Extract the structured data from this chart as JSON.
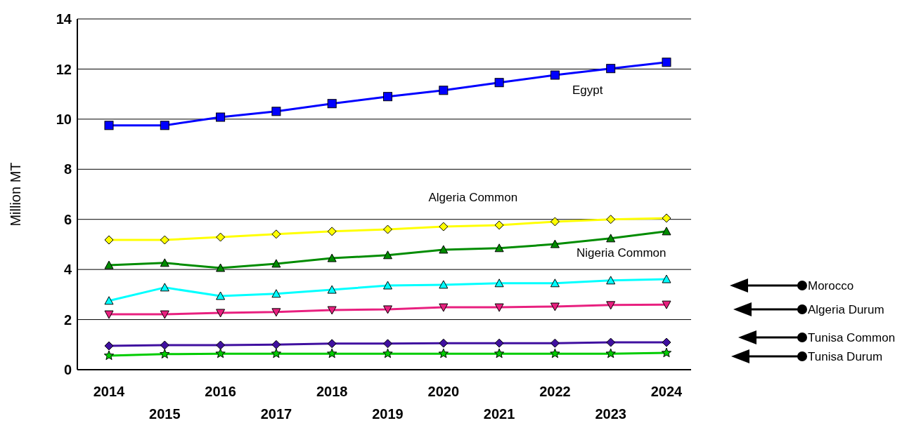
{
  "chart_data": {
    "type": "line",
    "ylabel": "Million MT",
    "categories": [
      "2014",
      "2015",
      "2016",
      "2017",
      "2018",
      "2019",
      "2020",
      "2021",
      "2022",
      "2023",
      "2024"
    ],
    "series": [
      {
        "name": "Egypt",
        "color": "#0000ff",
        "marker": "square",
        "values": [
          9.75,
          9.75,
          10.08,
          10.31,
          10.62,
          10.9,
          11.15,
          11.46,
          11.76,
          12.02,
          12.27
        ]
      },
      {
        "name": "Algeria Common",
        "color": "#ffff00",
        "marker": "diamond",
        "values": [
          5.18,
          5.18,
          5.29,
          5.41,
          5.52,
          5.6,
          5.71,
          5.77,
          5.91,
          6.0,
          6.05
        ]
      },
      {
        "name": "Nigeria Common",
        "color": "#008c00",
        "marker": "triangle",
        "values": [
          4.17,
          4.26,
          4.06,
          4.23,
          4.45,
          4.57,
          4.79,
          4.85,
          5.01,
          5.24,
          5.52
        ]
      },
      {
        "name": "Morocco",
        "color": "#00ffff",
        "marker": "triangle",
        "values": [
          2.75,
          3.28,
          2.94,
          3.03,
          3.19,
          3.36,
          3.39,
          3.45,
          3.45,
          3.56,
          3.61
        ]
      },
      {
        "name": "Algeria Durum",
        "color": "#e8207f",
        "marker": "triangle-down",
        "values": [
          2.21,
          2.21,
          2.27,
          2.3,
          2.38,
          2.41,
          2.49,
          2.49,
          2.52,
          2.58,
          2.6
        ]
      },
      {
        "name": "Tunisa Common",
        "color": "#4010a0",
        "marker": "diamond",
        "values": [
          0.95,
          0.98,
          0.98,
          1.0,
          1.04,
          1.04,
          1.06,
          1.06,
          1.06,
          1.09,
          1.09
        ]
      },
      {
        "name": "Tunisa Durum",
        "color": "#00cc00",
        "marker": "star",
        "values": [
          0.56,
          0.62,
          0.64,
          0.64,
          0.64,
          0.64,
          0.64,
          0.64,
          0.64,
          0.64,
          0.67
        ]
      }
    ],
    "ylim": [
      0,
      14
    ],
    "yticks": [
      0,
      2,
      4,
      6,
      8,
      10,
      12,
      14
    ],
    "grid": "y",
    "legend": "right",
    "line_style": "solid"
  }
}
